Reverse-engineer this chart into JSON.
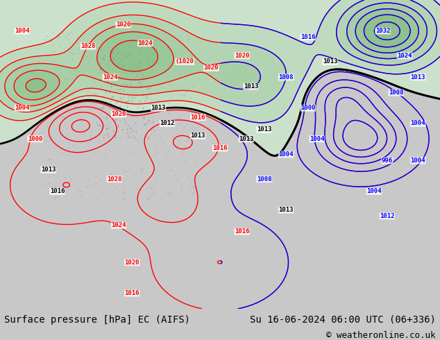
{
  "title_left": "Surface pressure [hPa] EC (AIFS)",
  "title_right": "Su 16-06-2024 06:00 UTC (06+336)",
  "copyright": "© weatheronline.co.uk",
  "bg_color": "#c8c8c8",
  "map_bg": "#ffffff",
  "footer_bg": "#c8c8c8",
  "font_family": "monospace",
  "title_fontsize": 10,
  "copyright_fontsize": 9,
  "label_fontsize": 6.5,
  "red_labels": [
    [
      5,
      90,
      "1004"
    ],
    [
      5,
      65,
      "1004"
    ],
    [
      20,
      85,
      "1028"
    ],
    [
      25,
      75,
      "1024"
    ],
    [
      8,
      55,
      "1000"
    ],
    [
      27,
      63,
      "1020"
    ],
    [
      26,
      42,
      "1028"
    ],
    [
      27,
      27,
      "1024"
    ],
    [
      30,
      15,
      "1020"
    ],
    [
      30,
      5,
      "1016"
    ],
    [
      28,
      92,
      "1020"
    ],
    [
      33,
      86,
      "1024"
    ],
    [
      42,
      80,
      "(1020"
    ],
    [
      48,
      78,
      "1020"
    ],
    [
      55,
      82,
      "1020"
    ],
    [
      45,
      62,
      "1016"
    ],
    [
      50,
      52,
      "1016"
    ],
    [
      55,
      25,
      "1016"
    ]
  ],
  "blue_labels": [
    [
      87,
      90,
      "1032"
    ],
    [
      92,
      82,
      "1024"
    ],
    [
      95,
      75,
      "1013"
    ],
    [
      90,
      70,
      "1008"
    ],
    [
      95,
      60,
      "1004"
    ],
    [
      95,
      48,
      "1004"
    ],
    [
      88,
      48,
      "996"
    ],
    [
      85,
      38,
      "1004"
    ],
    [
      88,
      30,
      "1012"
    ],
    [
      70,
      88,
      "1016"
    ],
    [
      65,
      75,
      "1008"
    ],
    [
      70,
      65,
      "1000"
    ],
    [
      72,
      55,
      "1004"
    ],
    [
      65,
      50,
      "1004"
    ],
    [
      60,
      42,
      "1008"
    ]
  ],
  "black_labels": [
    [
      11,
      45,
      "1013"
    ],
    [
      13,
      38,
      "1016"
    ],
    [
      36,
      65,
      "1013"
    ],
    [
      38,
      60,
      "1012"
    ],
    [
      45,
      56,
      "1013"
    ],
    [
      56,
      55,
      "1013"
    ],
    [
      75,
      80,
      "1013"
    ],
    [
      57,
      72,
      "1013"
    ],
    [
      60,
      58,
      "1013"
    ],
    [
      65,
      32,
      "1013"
    ]
  ]
}
